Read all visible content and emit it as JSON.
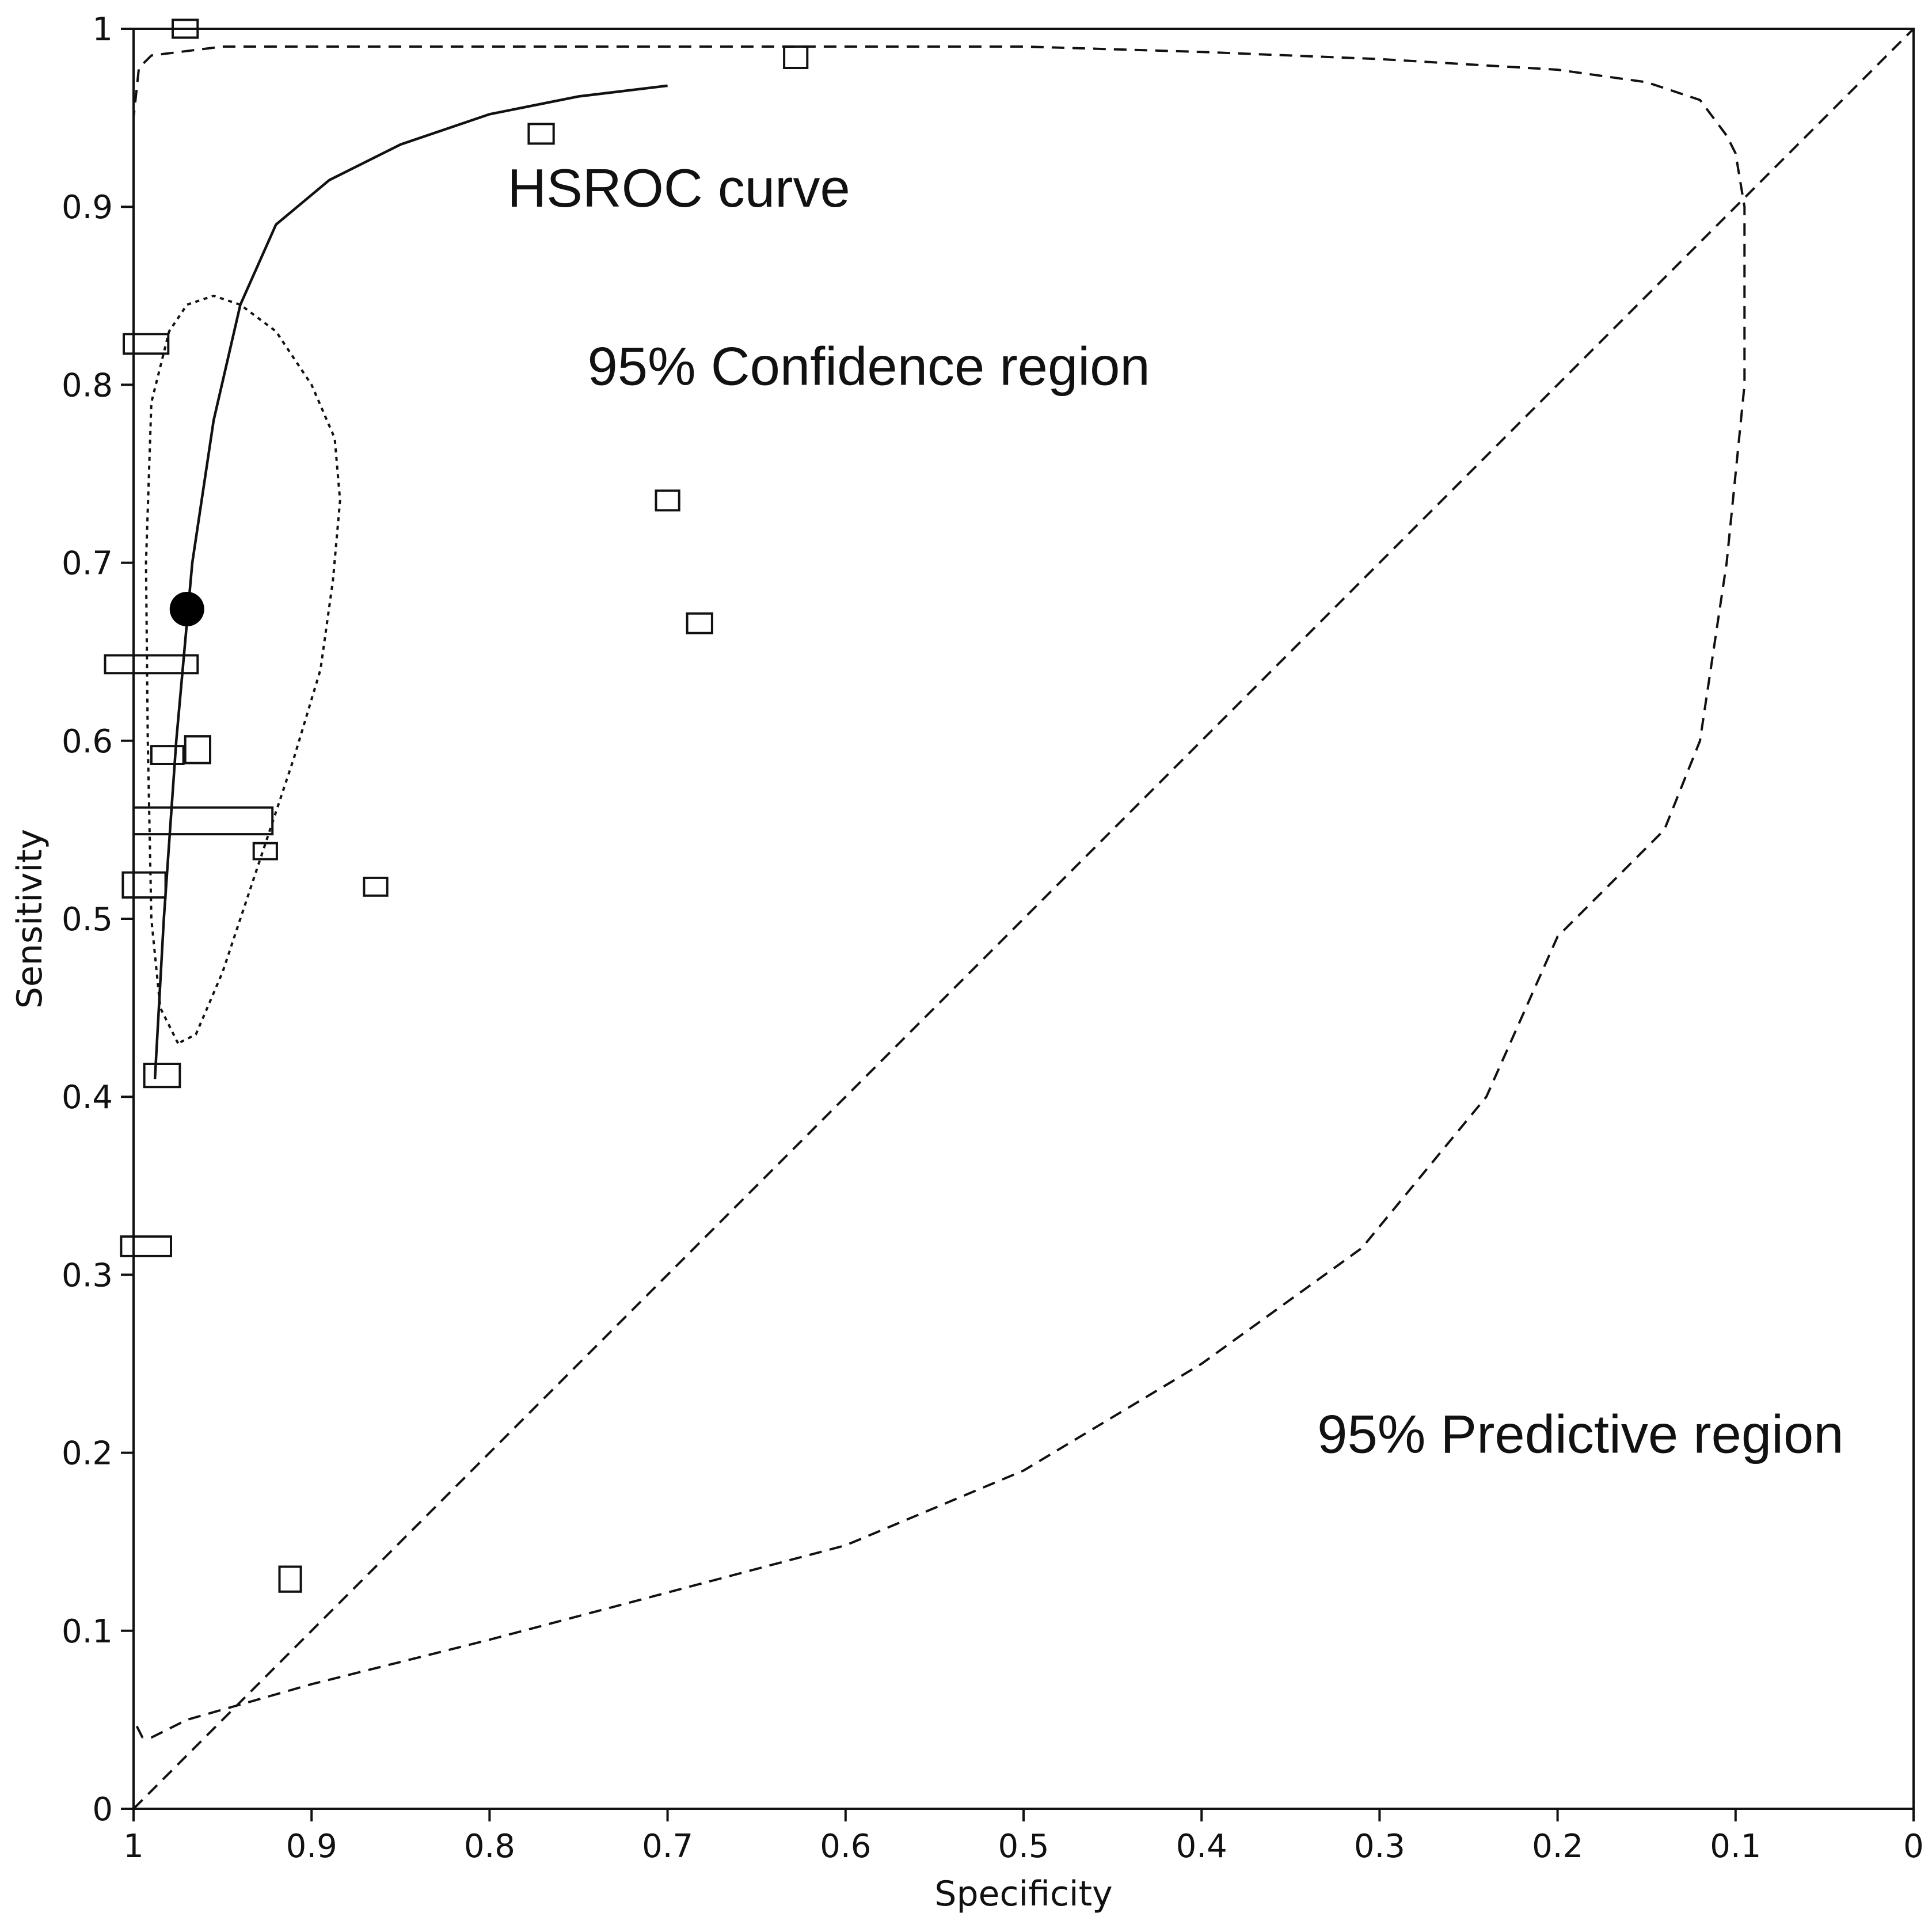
{
  "chart_data": {
    "type": "scatter",
    "title": "",
    "xlabel": "Specificity",
    "ylabel": "Sensitivity",
    "xlim": [
      1,
      0
    ],
    "ylim": [
      0,
      1
    ],
    "x_reversed": true,
    "grid": false,
    "x_ticks": [
      "1",
      "0.9",
      "0.8",
      "0.7",
      "0.6",
      "0.5",
      "0.4",
      "0.3",
      "0.2",
      "0.1",
      "0"
    ],
    "y_ticks": [
      "0",
      "0.1",
      "0.2",
      "0.3",
      "0.4",
      "0.5",
      "0.6",
      "0.7",
      "0.8",
      "0.9",
      "1"
    ],
    "study_points": [
      {
        "spec": 0.971,
        "sens": 1.0,
        "w": 0.014,
        "h": 0.01
      },
      {
        "spec": 0.628,
        "sens": 0.984,
        "w": 0.013,
        "h": 0.012
      },
      {
        "spec": 0.771,
        "sens": 0.941,
        "w": 0.014,
        "h": 0.011
      },
      {
        "spec": 0.993,
        "sens": 0.823,
        "w": 0.025,
        "h": 0.011
      },
      {
        "spec": 0.7,
        "sens": 0.735,
        "w": 0.013,
        "h": 0.011
      },
      {
        "spec": 0.682,
        "sens": 0.666,
        "w": 0.014,
        "h": 0.011
      },
      {
        "spec": 0.99,
        "sens": 0.643,
        "w": 0.052,
        "h": 0.01
      },
      {
        "spec": 0.964,
        "sens": 0.595,
        "w": 0.014,
        "h": 0.015
      },
      {
        "spec": 0.981,
        "sens": 0.592,
        "w": 0.018,
        "h": 0.01
      },
      {
        "spec": 0.961,
        "sens": 0.555,
        "w": 0.078,
        "h": 0.015
      },
      {
        "spec": 0.926,
        "sens": 0.538,
        "w": 0.013,
        "h": 0.009
      },
      {
        "spec": 0.864,
        "sens": 0.518,
        "w": 0.013,
        "h": 0.01
      },
      {
        "spec": 0.994,
        "sens": 0.519,
        "w": 0.024,
        "h": 0.014
      },
      {
        "spec": 0.984,
        "sens": 0.412,
        "w": 0.02,
        "h": 0.013
      },
      {
        "spec": 0.993,
        "sens": 0.316,
        "w": 0.028,
        "h": 0.011
      },
      {
        "spec": 0.912,
        "sens": 0.129,
        "w": 0.012,
        "h": 0.014
      }
    ],
    "summary_point": {
      "spec": 0.97,
      "sens": 0.674
    },
    "hsroc_curve": [
      [
        0.988,
        0.41
      ],
      [
        0.983,
        0.5
      ],
      [
        0.976,
        0.6
      ],
      [
        0.967,
        0.7
      ],
      [
        0.955,
        0.78
      ],
      [
        0.94,
        0.845
      ],
      [
        0.92,
        0.89
      ],
      [
        0.89,
        0.915
      ],
      [
        0.85,
        0.935
      ],
      [
        0.8,
        0.952
      ],
      [
        0.75,
        0.962
      ],
      [
        0.7,
        0.968
      ]
    ],
    "confidence_region": [
      [
        0.975,
        0.43
      ],
      [
        0.985,
        0.45
      ],
      [
        0.99,
        0.5
      ],
      [
        0.992,
        0.6
      ],
      [
        0.993,
        0.7
      ],
      [
        0.99,
        0.79
      ],
      [
        0.98,
        0.83
      ],
      [
        0.97,
        0.845
      ],
      [
        0.955,
        0.85
      ],
      [
        0.94,
        0.845
      ],
      [
        0.92,
        0.83
      ],
      [
        0.9,
        0.8
      ],
      [
        0.887,
        0.77
      ],
      [
        0.884,
        0.735
      ],
      [
        0.888,
        0.69
      ],
      [
        0.895,
        0.64
      ],
      [
        0.91,
        0.59
      ],
      [
        0.93,
        0.53
      ],
      [
        0.95,
        0.47
      ],
      [
        0.965,
        0.435
      ],
      [
        0.975,
        0.43
      ]
    ],
    "predictive_region": [
      [
        0.995,
        0.04
      ],
      [
        1.0,
        0.05
      ],
      [
        1.0,
        0.2
      ],
      [
        1.0,
        0.4
      ],
      [
        1.0,
        0.6
      ],
      [
        1.0,
        0.8
      ],
      [
        1.0,
        0.95
      ],
      [
        0.997,
        0.978
      ],
      [
        0.99,
        0.985
      ],
      [
        0.95,
        0.99
      ],
      [
        0.85,
        0.99
      ],
      [
        0.7,
        0.99
      ],
      [
        0.6,
        0.99
      ],
      [
        0.5,
        0.99
      ],
      [
        0.4,
        0.987
      ],
      [
        0.3,
        0.983
      ],
      [
        0.2,
        0.977
      ],
      [
        0.15,
        0.97
      ],
      [
        0.12,
        0.96
      ],
      [
        0.105,
        0.94
      ],
      [
        0.1,
        0.93
      ],
      [
        0.095,
        0.9
      ],
      [
        0.095,
        0.8
      ],
      [
        0.105,
        0.7
      ],
      [
        0.12,
        0.6
      ],
      [
        0.14,
        0.55
      ],
      [
        0.2,
        0.49
      ],
      [
        0.24,
        0.4
      ],
      [
        0.31,
        0.315
      ],
      [
        0.4,
        0.25
      ],
      [
        0.5,
        0.19
      ],
      [
        0.6,
        0.148
      ],
      [
        0.8,
        0.095
      ],
      [
        0.9,
        0.07
      ],
      [
        0.97,
        0.05
      ],
      [
        0.99,
        0.04
      ],
      [
        0.995,
        0.04
      ]
    ],
    "chance_line": [
      [
        1,
        0
      ],
      [
        0,
        1
      ]
    ],
    "annotations": [
      {
        "text": "HSROC curve",
        "spec": 0.79,
        "sens": 0.9
      },
      {
        "text": "95% Confidence region",
        "spec": 0.745,
        "sens": 0.8
      },
      {
        "text": "95% Predictive region",
        "spec": 0.335,
        "sens": 0.2
      }
    ]
  }
}
